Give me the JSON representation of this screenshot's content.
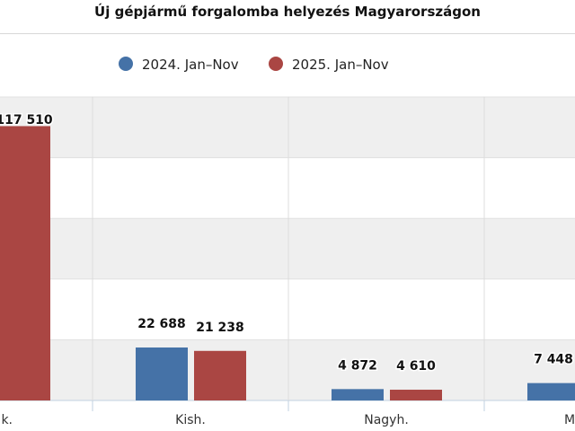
{
  "chart_data": {
    "type": "bar",
    "title": "Új gépjármű forgalomba helyezés Magyarországon",
    "categories": [
      "k.",
      "Kish.",
      "Nagyh.",
      "M"
    ],
    "series": [
      {
        "name": "2024. Jan–Nov",
        "color": "#4572a7",
        "values": [
          null,
          22688,
          4872,
          7448
        ]
      },
      {
        "name": "2025. Jan–Nov",
        "color": "#aa4643",
        "values": [
          117510,
          21238,
          4610,
          null
        ]
      }
    ],
    "data_labels": [
      [
        null,
        "22 688",
        "4 872",
        "7 448"
      ],
      [
        "117 510",
        "21 238",
        "4 610",
        null
      ]
    ],
    "ylim": [
      0,
      130000
    ],
    "grid": true,
    "legend": "top-center",
    "xlabel": "",
    "ylabel": ""
  }
}
